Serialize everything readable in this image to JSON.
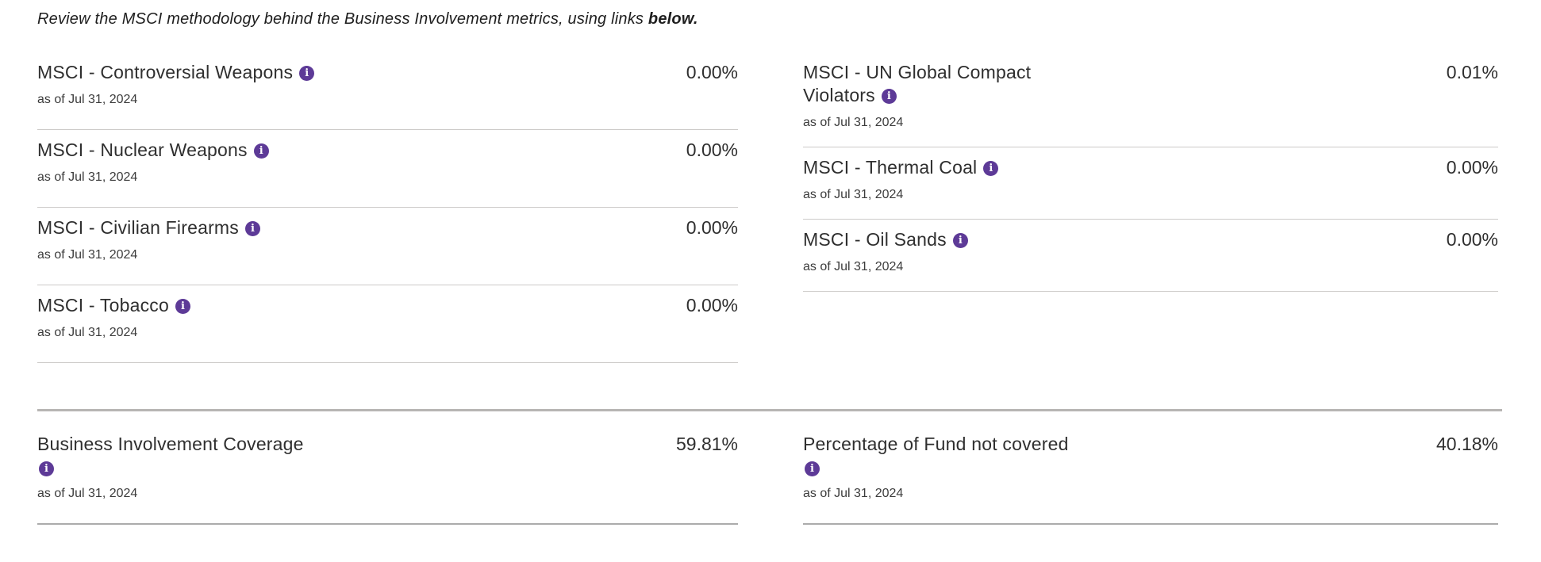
{
  "colors": {
    "accent_purple": "#5d3a97",
    "row_divider": "#cccac8",
    "section_divider": "#b7b5b3",
    "title_text": "#2f2f2f"
  },
  "header": {
    "text": "Review the MSCI methodology behind the Business Involvement metrics, using links ",
    "bold_text": "below."
  },
  "icons": {
    "info": {
      "glyph": "i"
    }
  },
  "top_metrics": {
    "left": [
      {
        "title": "MSCI - Controversial Weapons",
        "value": "0.00%",
        "as_of": "as of Jul 31, 2024"
      },
      {
        "title": "MSCI - Nuclear Weapons",
        "value": "0.00%",
        "as_of": "as of Jul 31, 2024"
      },
      {
        "title": "MSCI - Civilian Firearms",
        "value": "0.00%",
        "as_of": "as of Jul 31, 2024"
      },
      {
        "title": "MSCI - Tobacco",
        "value": "0.00%",
        "as_of": "as of Jul 31, 2024"
      }
    ],
    "right": [
      {
        "title": "MSCI - UN Global Compact",
        "title_line2": "Violators",
        "value": "0.01%",
        "as_of": "as of Jul 31, 2024"
      },
      {
        "title": "MSCI - Thermal Coal",
        "value": "0.00%",
        "as_of": "as of Jul 31, 2024"
      },
      {
        "title": "MSCI - Oil Sands",
        "value": "0.00%",
        "as_of": "as of Jul 31, 2024"
      }
    ]
  },
  "bottom_metrics": {
    "left": {
      "title": "Business Involvement Coverage",
      "value": "59.81%",
      "as_of": "as of Jul 31, 2024"
    },
    "right": {
      "title": "Percentage of Fund not covered",
      "value": "40.18%",
      "as_of": "as of Jul 31, 2024"
    }
  }
}
